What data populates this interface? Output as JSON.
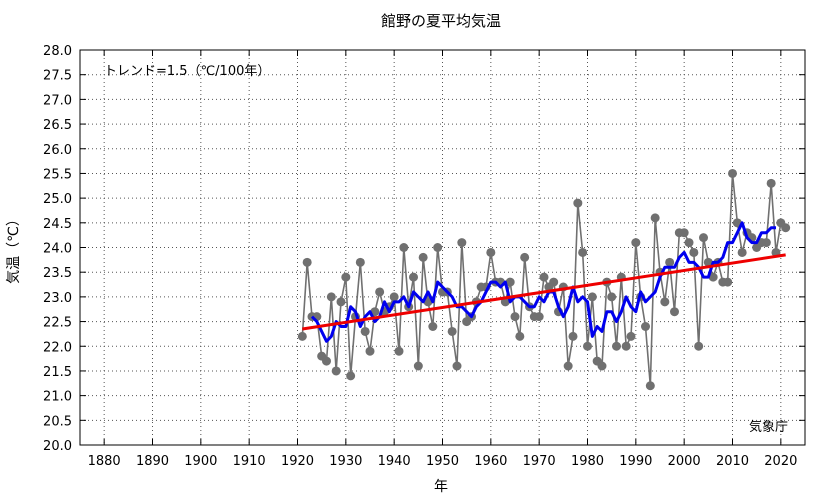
{
  "chart_data": {
    "type": "line",
    "title": "館野の夏平均気温",
    "xlabel": "年",
    "ylabel": "気温（℃）",
    "annotation": "トレンド=1.5（℃/100年）",
    "source": "気象庁",
    "xlim": [
      1875,
      2025
    ],
    "ylim": [
      20.0,
      28.0
    ],
    "xticks": [
      1880,
      1890,
      1900,
      1910,
      1920,
      1930,
      1940,
      1950,
      1960,
      1970,
      1980,
      1990,
      2000,
      2010,
      2020
    ],
    "yticks": [
      "20.0",
      "20.5",
      "21.0",
      "21.5",
      "22.0",
      "22.5",
      "23.0",
      "23.5",
      "24.0",
      "24.5",
      "25.0",
      "25.5",
      "26.0",
      "26.5",
      "27.0",
      "27.5",
      "28.0"
    ],
    "grid": true,
    "legend": "none",
    "colors": {
      "annual": "#707070",
      "moving_average": "#0000ee",
      "trend": "#ee0000"
    },
    "series": [
      {
        "values_kind": "annual",
        "x": [
          1921,
          1922,
          1923,
          1924,
          1925,
          1926,
          1927,
          1928,
          1929,
          1930,
          1931,
          1932,
          1933,
          1934,
          1935,
          1936,
          1937,
          1938,
          1939,
          1940,
          1941,
          1942,
          1943,
          1944,
          1945,
          1946,
          1947,
          1948,
          1949,
          1950,
          1951,
          1952,
          1953,
          1954,
          1955,
          1956,
          1957,
          1958,
          1959,
          1960,
          1961,
          1962,
          1963,
          1964,
          1965,
          1966,
          1967,
          1968,
          1969,
          1970,
          1971,
          1972,
          1973,
          1974,
          1975,
          1976,
          1977,
          1978,
          1979,
          1980,
          1981,
          1982,
          1983,
          1984,
          1985,
          1986,
          1987,
          1988,
          1989,
          1990,
          1991,
          1992,
          1993,
          1994,
          1995,
          1996,
          1997,
          1998,
          1999,
          2000,
          2001,
          2002,
          2003,
          2004,
          2005,
          2006,
          2007,
          2008,
          2009,
          2010,
          2011,
          2012,
          2013,
          2014,
          2015,
          2016,
          2017,
          2018,
          2019,
          2020,
          2021
        ],
        "y": [
          22.2,
          23.7,
          22.6,
          22.6,
          21.8,
          21.7,
          23.0,
          21.5,
          22.9,
          23.4,
          21.4,
          22.6,
          23.7,
          22.3,
          21.9,
          22.7,
          23.1,
          22.7,
          22.8,
          23.0,
          21.9,
          24.0,
          22.8,
          23.4,
          21.6,
          23.8,
          22.9,
          22.4,
          24.0,
          23.1,
          23.1,
          22.3,
          21.6,
          24.1,
          22.5,
          22.6,
          22.9,
          23.2,
          23.2,
          23.9,
          23.3,
          23.3,
          22.9,
          23.3,
          22.6,
          22.2,
          23.8,
          22.8,
          22.6,
          22.6,
          23.4,
          23.2,
          23.3,
          22.7,
          23.2,
          21.6,
          22.2,
          24.9,
          23.9,
          22.0,
          23.0,
          21.7,
          21.6,
          23.3,
          23.0,
          22.0,
          23.4,
          22.0,
          22.2,
          24.1,
          23.0,
          22.4,
          21.2,
          24.6,
          23.5,
          22.9,
          23.7,
          22.7,
          24.3,
          24.3,
          24.1,
          23.9,
          22.0,
          24.2,
          23.7,
          23.4,
          23.7,
          23.3,
          23.3,
          25.5,
          24.5,
          23.9,
          24.3,
          24.2,
          24.0,
          24.1,
          24.1,
          25.3,
          23.9,
          24.5,
          24.4
        ]
      },
      {
        "values_kind": "moving_average",
        "x": [
          1923,
          1924,
          1925,
          1926,
          1927,
          1928,
          1929,
          1930,
          1931,
          1932,
          1933,
          1934,
          1935,
          1936,
          1937,
          1938,
          1939,
          1940,
          1941,
          1942,
          1943,
          1944,
          1945,
          1946,
          1947,
          1948,
          1949,
          1950,
          1951,
          1952,
          1953,
          1954,
          1955,
          1956,
          1957,
          1958,
          1959,
          1960,
          1961,
          1962,
          1963,
          1964,
          1965,
          1966,
          1967,
          1968,
          1969,
          1970,
          1971,
          1972,
          1973,
          1974,
          1975,
          1976,
          1977,
          1978,
          1979,
          1980,
          1981,
          1982,
          1983,
          1984,
          1985,
          1986,
          1987,
          1988,
          1989,
          1990,
          1991,
          1992,
          1993,
          1994,
          1995,
          1996,
          1997,
          1998,
          1999,
          2000,
          2001,
          2002,
          2003,
          2004,
          2005,
          2006,
          2007,
          2008,
          2009,
          2010,
          2011,
          2012,
          2013,
          2014,
          2015,
          2016,
          2017,
          2018,
          2019
        ],
        "y": [
          22.6,
          22.5,
          22.3,
          22.1,
          22.2,
          22.5,
          22.4,
          22.4,
          22.8,
          22.7,
          22.4,
          22.6,
          22.7,
          22.5,
          22.6,
          22.9,
          22.7,
          22.9,
          22.9,
          23.0,
          22.8,
          23.1,
          23.0,
          22.9,
          23.1,
          22.9,
          23.3,
          23.2,
          23.1,
          23.0,
          22.8,
          22.8,
          22.7,
          22.6,
          22.8,
          22.9,
          23.1,
          23.3,
          23.3,
          23.2,
          23.3,
          22.9,
          23.0,
          23.0,
          22.9,
          22.8,
          22.8,
          23.0,
          22.9,
          23.1,
          23.1,
          22.8,
          22.6,
          22.8,
          23.2,
          22.9,
          23.0,
          22.9,
          22.2,
          22.4,
          22.3,
          22.7,
          22.7,
          22.5,
          22.7,
          23.0,
          22.8,
          22.7,
          23.1,
          22.9,
          23.0,
          23.1,
          23.4,
          23.6,
          23.6,
          23.6,
          23.8,
          23.9,
          23.7,
          23.7,
          23.6,
          23.4,
          23.4,
          23.7,
          23.7,
          23.8,
          24.1,
          24.1,
          24.3,
          24.5,
          24.2,
          24.1,
          24.1,
          24.3,
          24.3,
          24.4,
          24.4
        ]
      },
      {
        "values_kind": "trend",
        "x": [
          1921,
          2021
        ],
        "y": [
          22.35,
          23.85
        ]
      }
    ]
  }
}
